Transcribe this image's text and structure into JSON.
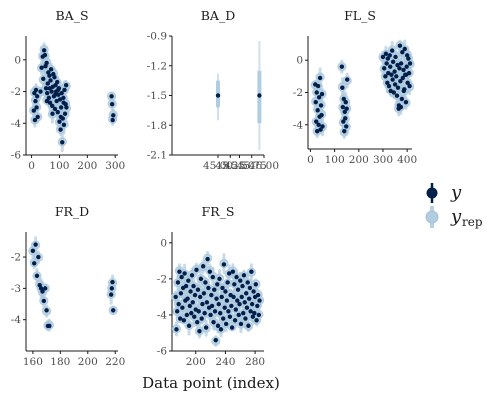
{
  "chart_data": {
    "type": "scatter",
    "xlabel": "Data point (index)",
    "colors": {
      "y": "#011f4b",
      "yrep": "#b3cde0",
      "yrep_edge": "#a5c3db",
      "axis": "#1a1a1a"
    },
    "legend": {
      "placement": "right",
      "items": [
        {
          "key": "y",
          "label": "y",
          "sub": ""
        },
        {
          "key": "yrep",
          "label": "y",
          "sub": "rep"
        }
      ]
    },
    "panels": [
      {
        "title": "BA_S",
        "xlim": [
          -20,
          310
        ],
        "ylim": [
          -6,
          1.5
        ],
        "xticks": [
          0,
          100,
          200,
          300
        ],
        "xtick_labels": [
          "0",
          "100",
          "200",
          "300"
        ],
        "yticks": [
          -6,
          -4,
          -2,
          0
        ],
        "ytick_labels": [
          "-6",
          "-4",
          "-2",
          "0"
        ],
        "points": [
          [
            8,
            -3.2
          ],
          [
            10,
            -2.1
          ],
          [
            12,
            -3.8
          ],
          [
            14,
            -2.6
          ],
          [
            16,
            -1.9
          ],
          [
            18,
            -3.0
          ],
          [
            20,
            -2.3
          ],
          [
            22,
            -3.6
          ],
          [
            32,
            -2.0
          ],
          [
            36,
            -0.5
          ],
          [
            40,
            0.2
          ],
          [
            42,
            -1.2
          ],
          [
            45,
            0.6
          ],
          [
            48,
            0.3
          ],
          [
            50,
            -0.4
          ],
          [
            52,
            -1.8
          ],
          [
            54,
            -0.2
          ],
          [
            56,
            -2.1
          ],
          [
            58,
            -1.5
          ],
          [
            60,
            -0.8
          ],
          [
            62,
            -2.4
          ],
          [
            64,
            -1.0
          ],
          [
            66,
            -2.7
          ],
          [
            68,
            -1.3
          ],
          [
            70,
            -0.6
          ],
          [
            72,
            -2.0
          ],
          [
            74,
            -2.9
          ],
          [
            76,
            -1.7
          ],
          [
            78,
            -0.9
          ],
          [
            80,
            -2.3
          ],
          [
            82,
            -1.1
          ],
          [
            84,
            -3.1
          ],
          [
            86,
            -1.6
          ],
          [
            88,
            -2.0
          ],
          [
            90,
            -2.6
          ],
          [
            92,
            -1.4
          ],
          [
            94,
            -3.3
          ],
          [
            96,
            -2.2
          ],
          [
            98,
            -1.8
          ],
          [
            100,
            -3.9
          ],
          [
            102,
            -2.5
          ],
          [
            104,
            -4.4
          ],
          [
            106,
            -3.0
          ],
          [
            108,
            -2.1
          ],
          [
            110,
            -5.2
          ],
          [
            112,
            -3.7
          ],
          [
            114,
            -2.4
          ],
          [
            116,
            -4.1
          ],
          [
            118,
            -1.9
          ],
          [
            120,
            -3.4
          ],
          [
            122,
            -2.8
          ],
          [
            124,
            -1.6
          ],
          [
            55,
            -2.6
          ],
          [
            65,
            -1.8
          ],
          [
            75,
            -3.4
          ],
          [
            85,
            -2.2
          ],
          [
            95,
            -1.9
          ],
          [
            105,
            -3.6
          ],
          [
            115,
            -2.7
          ],
          [
            125,
            -3.0
          ],
          [
            287,
            -2.3
          ],
          [
            289,
            -2.8
          ],
          [
            291,
            -3.8
          ],
          [
            293,
            -3.5
          ]
        ]
      },
      {
        "title": "BA_D",
        "xlim": [
          44.985,
          45.015
        ],
        "ylim": [
          -2.1,
          -0.9
        ],
        "xticks": [
          45.0,
          45.004,
          45.007,
          45.011,
          45.015
        ],
        "xtick_labels": [
          "45.00",
          "45.25",
          "45.50",
          "45.75",
          "46.00"
        ],
        "yticks": [
          -2.1,
          -1.8,
          -1.5,
          -1.2,
          -0.9
        ],
        "ytick_labels": [
          "-2.1",
          "-1.8",
          "-1.5",
          "-1.2",
          "-0.9"
        ],
        "points": [
          [
            45.0,
            -1.5
          ],
          [
            45.0135,
            -1.5
          ]
        ],
        "rep_intervals": [
          {
            "x": 45.0,
            "inner": [
              -1.62,
              -1.35
            ],
            "outer": [
              -1.75,
              -1.28
            ]
          },
          {
            "x": 45.0135,
            "inner": [
              -1.78,
              -1.25
            ],
            "outer": [
              -2.05,
              -0.95
            ]
          }
        ]
      },
      {
        "title": "FL_S",
        "xlim": [
          -10,
          420
        ],
        "ylim": [
          -5.5,
          1.5
        ],
        "xticks": [
          0,
          100,
          200,
          300,
          400
        ],
        "xtick_labels": [
          "0",
          "100",
          "200",
          "300",
          "400"
        ],
        "yticks": [
          -4,
          -2,
          0
        ],
        "ytick_labels": [
          "-4",
          "-2",
          "0"
        ],
        "points": [
          [
            20,
            -1.5
          ],
          [
            22,
            -2.6
          ],
          [
            24,
            -3.8
          ],
          [
            26,
            -2.0
          ],
          [
            28,
            -4.4
          ],
          [
            30,
            -3.1
          ],
          [
            32,
            -1.6
          ],
          [
            34,
            -4.0
          ],
          [
            36,
            -2.3
          ],
          [
            38,
            -3.5
          ],
          [
            40,
            -1.1
          ],
          [
            42,
            -4.3
          ],
          [
            44,
            -2.8
          ],
          [
            46,
            -3.4
          ],
          [
            48,
            -2.1
          ],
          [
            50,
            -4.1
          ],
          [
            130,
            -0.4
          ],
          [
            132,
            -1.7
          ],
          [
            134,
            -2.9
          ],
          [
            136,
            -3.8
          ],
          [
            138,
            -2.4
          ],
          [
            140,
            -4.4
          ],
          [
            142,
            -3.2
          ],
          [
            144,
            -3.6
          ],
          [
            146,
            -2.6
          ],
          [
            148,
            -4.1
          ],
          [
            150,
            -3.0
          ],
          [
            152,
            -1.2
          ],
          [
            300,
            0.2
          ],
          [
            305,
            -0.5
          ],
          [
            310,
            -1.0
          ],
          [
            312,
            0.4
          ],
          [
            315,
            -0.2
          ],
          [
            318,
            -1.4
          ],
          [
            320,
            0.1
          ],
          [
            322,
            -0.8
          ],
          [
            325,
            -1.6
          ],
          [
            328,
            0.3
          ],
          [
            330,
            -0.4
          ],
          [
            332,
            -1.9
          ],
          [
            335,
            -0.9
          ],
          [
            338,
            0.6
          ],
          [
            340,
            -1.2
          ],
          [
            342,
            -0.1
          ],
          [
            345,
            -2.0
          ],
          [
            348,
            -0.7
          ],
          [
            350,
            -1.5
          ],
          [
            352,
            0.2
          ],
          [
            355,
            -1.0
          ],
          [
            358,
            -2.2
          ],
          [
            360,
            -0.3
          ],
          [
            362,
            -1.7
          ],
          [
            365,
            -3.0
          ],
          [
            368,
            -0.5
          ],
          [
            370,
            0.9
          ],
          [
            372,
            -1.3
          ],
          [
            375,
            -0.2
          ],
          [
            378,
            -2.4
          ],
          [
            380,
            0.5
          ],
          [
            382,
            -1.1
          ],
          [
            385,
            -0.6
          ],
          [
            388,
            -1.8
          ],
          [
            390,
            0.7
          ],
          [
            392,
            -0.9
          ],
          [
            395,
            -2.6
          ],
          [
            398,
            -0.4
          ],
          [
            400,
            0.3
          ],
          [
            402,
            -1.4
          ],
          [
            405,
            0.1
          ],
          [
            408,
            -0.8
          ],
          [
            410,
            -1.6
          ],
          [
            412,
            -0.2
          ],
          [
            366,
            -2.8
          ],
          [
            374,
            -2.9
          ],
          [
            386,
            -1.9
          ],
          [
            396,
            -0.9
          ]
        ]
      },
      {
        "title": "FR_D",
        "xlim": [
          155,
          222
        ],
        "ylim": [
          -5,
          -1.2
        ],
        "xticks": [
          160,
          180,
          200,
          220
        ],
        "xtick_labels": [
          "160",
          "180",
          "200",
          "220"
        ],
        "yticks": [
          -4,
          -3,
          -2
        ],
        "ytick_labels": [
          "-4",
          "-3",
          "-2"
        ],
        "points": [
          [
            160,
            -1.8
          ],
          [
            161,
            -2.2
          ],
          [
            162,
            -1.6
          ],
          [
            163,
            -2.6
          ],
          [
            164,
            -2.0
          ],
          [
            165,
            -2.9
          ],
          [
            166,
            -3.0
          ],
          [
            167,
            -3.1
          ],
          [
            168,
            -3.4
          ],
          [
            169,
            -3.0
          ],
          [
            170,
            -3.7
          ],
          [
            171,
            -4.2
          ],
          [
            172,
            -4.2
          ],
          [
            217,
            -3.2
          ],
          [
            218,
            -2.8
          ],
          [
            218.5,
            -3.7
          ],
          [
            217.5,
            -3.0
          ]
        ]
      },
      {
        "title": "FR_S",
        "xlim": [
          168,
          292
        ],
        "ylim": [
          -6,
          0.6
        ],
        "xticks": [
          200,
          240,
          280
        ],
        "xtick_labels": [
          "200",
          "240",
          "280"
        ],
        "yticks": [
          -6,
          -4,
          -2,
          0
        ],
        "ytick_labels": [
          "-6",
          "-4",
          "-2",
          "0"
        ],
        "points": [
          [
            173,
            -3.0
          ],
          [
            174,
            -4.8
          ],
          [
            175,
            -3.8
          ],
          [
            176,
            -2.2
          ],
          [
            177,
            -3.4
          ],
          [
            178,
            -1.6
          ],
          [
            179,
            -4.2
          ],
          [
            180,
            -2.8
          ],
          [
            181,
            -1.9
          ],
          [
            182,
            -3.6
          ],
          [
            183,
            -2.5
          ],
          [
            184,
            -4.3
          ],
          [
            185,
            -1.7
          ],
          [
            186,
            -3.2
          ],
          [
            187,
            -2.4
          ],
          [
            188,
            -4.0
          ],
          [
            189,
            -3.1
          ],
          [
            190,
            -2.1
          ],
          [
            191,
            -4.6
          ],
          [
            192,
            -3.5
          ],
          [
            193,
            -2.7
          ],
          [
            194,
            -3.9
          ],
          [
            195,
            -1.8
          ],
          [
            196,
            -3.3
          ],
          [
            197,
            -2.4
          ],
          [
            198,
            -4.1
          ],
          [
            199,
            -2.9
          ],
          [
            200,
            -3.7
          ],
          [
            201,
            -1.5
          ],
          [
            202,
            -4.4
          ],
          [
            203,
            -2.6
          ],
          [
            204,
            -3.8
          ],
          [
            205,
            -4.9
          ],
          [
            206,
            -3.0
          ],
          [
            207,
            -2.0
          ],
          [
            208,
            -4.2
          ],
          [
            209,
            -3.4
          ],
          [
            210,
            -1.3
          ],
          [
            211,
            -2.8
          ],
          [
            212,
            -3.9
          ],
          [
            213,
            -2.2
          ],
          [
            214,
            -4.7
          ],
          [
            215,
            -3.3
          ],
          [
            216,
            -0.9
          ],
          [
            217,
            -2.5
          ],
          [
            218,
            -3.6
          ],
          [
            219,
            -1.6
          ],
          [
            220,
            -4.0
          ],
          [
            221,
            -2.9
          ],
          [
            222,
            -3.5
          ],
          [
            223,
            -1.9
          ],
          [
            224,
            -4.4
          ],
          [
            225,
            -2.6
          ],
          [
            226,
            -3.8
          ],
          [
            227,
            -5.4
          ],
          [
            228,
            -3.1
          ],
          [
            229,
            -2.3
          ],
          [
            230,
            -4.6
          ],
          [
            231,
            -3.4
          ],
          [
            232,
            -2.0
          ],
          [
            233,
            -3.9
          ],
          [
            234,
            -4.8
          ],
          [
            235,
            -3.0
          ],
          [
            236,
            -2.5
          ],
          [
            237,
            -4.2
          ],
          [
            238,
            -1.2
          ],
          [
            239,
            -3.6
          ],
          [
            240,
            -2.7
          ],
          [
            241,
            -4.5
          ],
          [
            242,
            -3.2
          ],
          [
            243,
            -2.2
          ],
          [
            244,
            -3.8
          ],
          [
            245,
            -1.7
          ],
          [
            246,
            -4.1
          ],
          [
            247,
            -2.9
          ],
          [
            248,
            -3.5
          ],
          [
            249,
            -4.7
          ],
          [
            250,
            -1.6
          ],
          [
            251,
            -3.0
          ],
          [
            252,
            -2.3
          ],
          [
            253,
            -4.3
          ],
          [
            254,
            -3.7
          ],
          [
            255,
            -1.9
          ],
          [
            256,
            -3.2
          ],
          [
            257,
            -2.6
          ],
          [
            258,
            -4.0
          ],
          [
            259,
            -3.4
          ],
          [
            260,
            -2.1
          ],
          [
            261,
            -4.5
          ],
          [
            262,
            -3.0
          ],
          [
            263,
            -2.4
          ],
          [
            264,
            -3.9
          ],
          [
            265,
            -1.8
          ],
          [
            266,
            -3.3
          ],
          [
            267,
            -4.2
          ],
          [
            268,
            -2.8
          ],
          [
            269,
            -3.6
          ],
          [
            270,
            -2.2
          ],
          [
            271,
            -4.6
          ],
          [
            272,
            -3.1
          ],
          [
            273,
            -2.5
          ],
          [
            274,
            -3.8
          ],
          [
            275,
            -1.6
          ],
          [
            276,
            -3.4
          ],
          [
            277,
            -4.1
          ],
          [
            278,
            -2.7
          ],
          [
            279,
            -3.9
          ],
          [
            280,
            -3.0
          ],
          [
            281,
            -2.3
          ],
          [
            282,
            -4.3
          ],
          [
            283,
            -3.5
          ],
          [
            284,
            -2.9
          ],
          [
            285,
            -4.0
          ],
          [
            286,
            -3.2
          ]
        ]
      }
    ]
  }
}
